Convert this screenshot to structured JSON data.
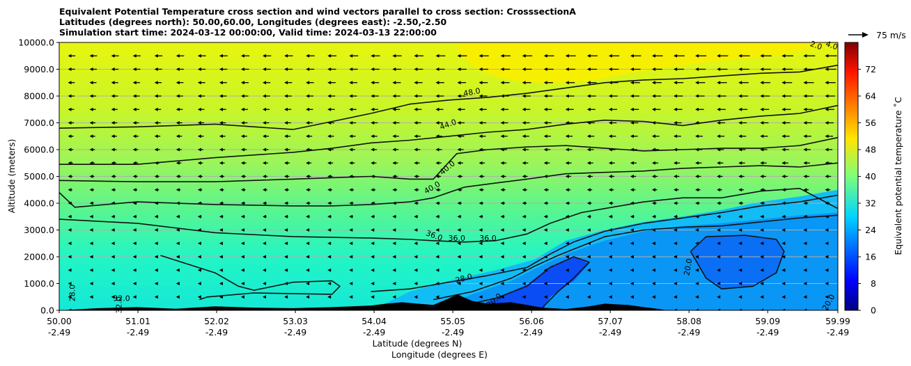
{
  "chart_data": {
    "type": "heatmap",
    "title_lines": [
      "Equivalent Potential Temperature cross section and wind vectors parallel to cross section: CrosssectionA",
      "Latitudes (degrees north): 50.00,60.00, Longitudes (degrees east): -2.50,-2.50",
      "Simulation start time: 2024-03-12 00:00:00, Valid time: 2024-03-13 22:00:00"
    ],
    "xlabel_lines": [
      "Latitude (degrees N)",
      "Longitude (degrees E)"
    ],
    "ylabel": "Altitude (meters)",
    "colorbar_label": "Equivalent potential temperature $^\\circ$C",
    "colorbar_label_display": "Equivalent potential temperature ˚C",
    "quiver_key_label": "75 m/s",
    "x_ticks": [
      {
        "lat": "50.00",
        "lon": "-2.49"
      },
      {
        "lat": "51.01",
        "lon": "-2.49"
      },
      {
        "lat": "52.02",
        "lon": "-2.49"
      },
      {
        "lat": "53.03",
        "lon": "-2.49"
      },
      {
        "lat": "54.04",
        "lon": "-2.49"
      },
      {
        "lat": "55.05",
        "lon": "-2.49"
      },
      {
        "lat": "56.06",
        "lon": "-2.49"
      },
      {
        "lat": "57.07",
        "lon": "-2.49"
      },
      {
        "lat": "58.08",
        "lon": "-2.49"
      },
      {
        "lat": "59.09",
        "lon": "-2.49"
      },
      {
        "lat": "59.99",
        "lon": "-2.49"
      }
    ],
    "x_range": [
      50.0,
      59.99
    ],
    "y_ticks": [
      "0.0",
      "1000.0",
      "2000.0",
      "3000.0",
      "4000.0",
      "5000.0",
      "6000.0",
      "7000.0",
      "8000.0",
      "9000.0",
      "10000.0"
    ],
    "ylim": [
      0,
      10000
    ],
    "colorbar_ticks": [
      "0",
      "8",
      "16",
      "24",
      "32",
      "40",
      "48",
      "56",
      "64",
      "72"
    ],
    "colorbar_range": [
      0,
      80
    ],
    "colormap": "jet",
    "grid": "horizontal",
    "contour_labels": [
      "48.0",
      "44.0",
      "40.0",
      "40.0",
      "36.0",
      "36.0",
      "36.0",
      "28.0",
      "28.0",
      "32.0",
      "32.0",
      "20.0",
      "20.0",
      "20.0",
      "4.0",
      "2.0"
    ],
    "contours": [
      {
        "level": 48,
        "x": [
          50.0,
          51.0,
          52.0,
          53.0,
          53.5,
          54.0,
          54.5,
          55.0,
          55.5,
          56.0,
          56.5,
          57.0,
          57.5,
          58.0,
          58.5,
          59.0,
          59.5,
          59.99
        ],
        "y": [
          6800,
          6850,
          6950,
          6750,
          7050,
          7350,
          7700,
          7850,
          7950,
          8100,
          8300,
          8500,
          8600,
          8650,
          8750,
          8850,
          8900,
          9150
        ]
      },
      {
        "level": 44,
        "x": [
          50.0,
          51.0,
          52.0,
          53.0,
          53.5,
          54.0,
          54.5,
          55.0,
          55.5,
          56.0,
          56.5,
          57.0,
          57.5,
          58.0,
          58.5,
          59.0,
          59.5,
          59.99
        ],
        "y": [
          5450,
          5450,
          5700,
          5900,
          6050,
          6250,
          6350,
          6500,
          6650,
          6750,
          6950,
          7100,
          7050,
          6900,
          7100,
          7250,
          7350,
          7650
        ]
      },
      {
        "level": 40,
        "x": [
          50.0,
          51.0,
          52.0,
          53.0,
          53.5,
          54.0,
          54.5,
          54.8,
          55.1,
          55.5,
          56.0,
          56.5,
          57.0,
          57.5,
          58.0,
          58.5,
          59.0,
          59.5,
          59.99
        ],
        "y": [
          4850,
          4800,
          4800,
          4900,
          4950,
          5000,
          4900,
          4900,
          5850,
          6000,
          6100,
          6150,
          6050,
          5950,
          6000,
          6050,
          6050,
          6150,
          6450
        ]
      },
      {
        "level": 40,
        "x": [
          50.0,
          50.2,
          51.0,
          52.0,
          53.0,
          53.5,
          54.0,
          54.5,
          54.8,
          55.2,
          55.6,
          56.0,
          56.5,
          57.0,
          57.5,
          58.0,
          58.5,
          59.0,
          59.5,
          59.99
        ],
        "y": [
          4400,
          3850,
          4050,
          3950,
          3900,
          3900,
          3950,
          4050,
          4200,
          4600,
          4750,
          4900,
          5100,
          5150,
          5200,
          5300,
          5350,
          5400,
          5350,
          5500
        ]
      },
      {
        "level": 36,
        "x": [
          50.0,
          51.0,
          52.0,
          53.0,
          54.0,
          54.5,
          54.8,
          55.2,
          55.6,
          56.0,
          56.3,
          56.7,
          57.0,
          57.5,
          58.0,
          58.5,
          59.0,
          59.5,
          59.99
        ],
        "y": [
          3400,
          3250,
          2900,
          2750,
          2700,
          2650,
          2600,
          2550,
          2600,
          2850,
          3250,
          3650,
          3800,
          4050,
          4200,
          4200,
          4450,
          4550,
          3800
        ]
      },
      {
        "level": 32,
        "x": [
          51.3,
          52.0,
          52.3,
          52.5,
          53.0,
          53.5,
          53.6,
          53.5,
          52.5,
          51.9,
          51.8
        ],
        "y": [
          2050,
          1400,
          900,
          750,
          1050,
          1100,
          900,
          600,
          650,
          500,
          400
        ]
      },
      {
        "level": 28,
        "x": [
          54.0,
          54.5,
          55.0,
          55.5,
          56.0,
          56.3,
          56.6,
          57.0,
          57.5,
          58.0,
          58.5,
          59.0,
          59.5,
          59.99
        ],
        "y": [
          700,
          800,
          1050,
          1300,
          1600,
          2100,
          2550,
          2950,
          3250,
          3450,
          3650,
          3900,
          4050,
          4300
        ]
      },
      {
        "level": 24,
        "x": [
          54.8,
          55.3,
          55.8,
          56.1,
          56.4,
          56.7,
          57.0,
          57.5,
          58.0,
          58.5,
          59.0,
          59.5,
          59.99
        ],
        "y": [
          400,
          700,
          1200,
          1650,
          2050,
          2400,
          2750,
          3000,
          3100,
          3150,
          3300,
          3450,
          3550
        ]
      },
      {
        "level": 20,
        "x": [
          55.2,
          55.6,
          56.0,
          56.3,
          56.6,
          56.8,
          56.6,
          56.4,
          56.2
        ],
        "y": [
          200,
          450,
          900,
          1600,
          2000,
          1800,
          1200,
          700,
          100
        ]
      },
      {
        "level": 20,
        "x": [
          58.1,
          58.3,
          58.8,
          59.2,
          59.3,
          59.2,
          58.9,
          58.5,
          58.3,
          58.1
        ],
        "y": [
          2200,
          2750,
          2800,
          2650,
          2200,
          1400,
          900,
          800,
          1200,
          2200
        ]
      }
    ],
    "terrain_height": {
      "x": [
        50.0,
        50.5,
        51.0,
        51.5,
        52.0,
        52.5,
        53.0,
        53.5,
        54.0,
        54.2,
        54.4,
        54.6,
        54.8,
        55.0,
        55.1,
        55.3,
        55.5,
        55.8,
        56.0,
        56.2,
        56.5,
        56.8,
        57.0,
        57.3,
        57.5,
        57.7,
        57.8,
        58.0,
        59.99
      ],
      "y": [
        0,
        80,
        120,
        60,
        150,
        100,
        80,
        120,
        180,
        250,
        300,
        250,
        200,
        450,
        600,
        350,
        250,
        300,
        200,
        100,
        50,
        150,
        250,
        200,
        120,
        50,
        0,
        0,
        0
      ]
    }
  }
}
